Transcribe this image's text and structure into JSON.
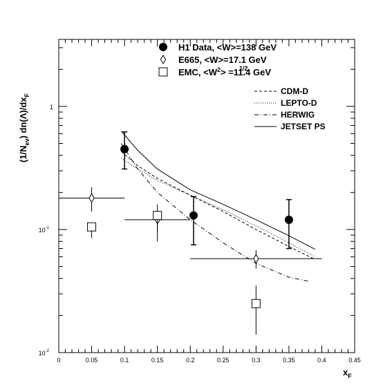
{
  "chart_data": {
    "type": "scatter",
    "log_y": true,
    "xlabel": "x",
    "xlabel_sub": "F",
    "ylabel": "(1/N",
    "ylabel_sub1": "ev",
    "ylabel_mid": ") dn(Λ)/dx",
    "ylabel_sub2": "F",
    "xlim": [
      0,
      0.45
    ],
    "ylim": [
      0.01,
      3.5
    ],
    "x_ticks": [
      {
        "v": 0,
        "label": "0"
      },
      {
        "v": 0.05,
        "label": "0.05"
      },
      {
        "v": 0.1,
        "label": "0.1"
      },
      {
        "v": 0.15,
        "label": "0.15"
      },
      {
        "v": 0.2,
        "label": "0.2"
      },
      {
        "v": 0.25,
        "label": "0.25"
      },
      {
        "v": 0.3,
        "label": "0.3"
      },
      {
        "v": 0.35,
        "label": "0.35"
      },
      {
        "v": 0.4,
        "label": "0.4"
      },
      {
        "v": 0.45,
        "label": "0.45"
      }
    ],
    "y_ticks": [
      {
        "v": 0.01,
        "base": "10",
        "exp": "-2"
      },
      {
        "v": 0.1,
        "base": "10",
        "exp": "-1"
      },
      {
        "v": 1,
        "base": "1",
        "exp": ""
      }
    ],
    "legend_points": [
      {
        "marker": "circle",
        "text": "H1 Data,  <W>=138 GeV",
        "sup": "",
        "tail": ""
      },
      {
        "marker": "diamond",
        "text": "E665,  <W>=17.1 GeV",
        "sup": "",
        "tail": ""
      },
      {
        "marker": "square",
        "text": "EMC,  <W",
        "sup": "2",
        "tail": ">   =11.4 GeV",
        "sup2": "1/2"
      }
    ],
    "legend_lines": [
      {
        "style": "dashed",
        "text": "CDM-D"
      },
      {
        "style": "dotted",
        "text": "LEPTO-D"
      },
      {
        "style": "dashdot",
        "text": "HERWIG"
      },
      {
        "style": "solid",
        "text": "JETSET PS"
      }
    ],
    "data_series": [
      {
        "name": "H1 Data",
        "marker": "circle",
        "points": [
          {
            "x": 0.1,
            "y": 0.45,
            "y_lo": 0.31,
            "y_hi": 0.62,
            "x_lo": 0.1,
            "x_hi": 0.1
          },
          {
            "x": 0.205,
            "y": 0.13,
            "y_lo": 0.075,
            "y_hi": 0.185,
            "x_lo": 0.205,
            "x_hi": 0.205
          },
          {
            "x": 0.35,
            "y": 0.12,
            "y_lo": 0.07,
            "y_hi": 0.175,
            "x_lo": 0.35,
            "x_hi": 0.35
          }
        ]
      },
      {
        "name": "E665",
        "marker": "diamond",
        "points": [
          {
            "x": 0.05,
            "y": 0.18,
            "y_lo": 0.14,
            "y_hi": 0.22,
            "x_lo": 0.0,
            "x_hi": 0.1
          },
          {
            "x": 0.15,
            "y": 0.12,
            "y_lo": 0.08,
            "y_hi": 0.16,
            "x_lo": 0.1,
            "x_hi": 0.2
          },
          {
            "x": 0.3,
            "y": 0.058,
            "y_lo": 0.048,
            "y_hi": 0.068,
            "x_lo": 0.2,
            "x_hi": 0.4
          }
        ]
      },
      {
        "name": "EMC",
        "marker": "square",
        "points": [
          {
            "x": 0.05,
            "y": 0.105,
            "y_lo": 0.085,
            "y_hi": 0.105,
            "x_lo": 0.05,
            "x_hi": 0.05
          },
          {
            "x": 0.15,
            "y": 0.13,
            "y_lo": 0.095,
            "y_hi": 0.13,
            "x_lo": 0.15,
            "x_hi": 0.15
          },
          {
            "x": 0.3,
            "y": 0.025,
            "y_lo": 0.014,
            "y_hi": 0.035,
            "x_lo": 0.3,
            "x_hi": 0.3
          }
        ]
      }
    ],
    "curves": [
      {
        "name": "CDM-D",
        "style": "dashed",
        "x": [
          0.095,
          0.12,
          0.15,
          0.2,
          0.25,
          0.3,
          0.35,
          0.39
        ],
        "y": [
          0.43,
          0.33,
          0.26,
          0.19,
          0.14,
          0.1,
          0.073,
          0.057
        ]
      },
      {
        "name": "LEPTO-D",
        "style": "dotted",
        "x": [
          0.095,
          0.12,
          0.15,
          0.2,
          0.25,
          0.3,
          0.35,
          0.39
        ],
        "y": [
          0.38,
          0.31,
          0.25,
          0.19,
          0.145,
          0.107,
          0.078,
          0.06
        ]
      },
      {
        "name": "HERWIG",
        "style": "dashdot",
        "x": [
          0.095,
          0.12,
          0.15,
          0.2,
          0.25,
          0.3,
          0.35,
          0.38
        ],
        "y": [
          0.5,
          0.31,
          0.2,
          0.12,
          0.078,
          0.053,
          0.041,
          0.038
        ]
      },
      {
        "name": "JETSET PS",
        "style": "solid",
        "x": [
          0.095,
          0.12,
          0.15,
          0.2,
          0.25,
          0.3,
          0.35,
          0.39
        ],
        "y": [
          0.63,
          0.44,
          0.31,
          0.21,
          0.16,
          0.12,
          0.089,
          0.069
        ]
      }
    ]
  }
}
